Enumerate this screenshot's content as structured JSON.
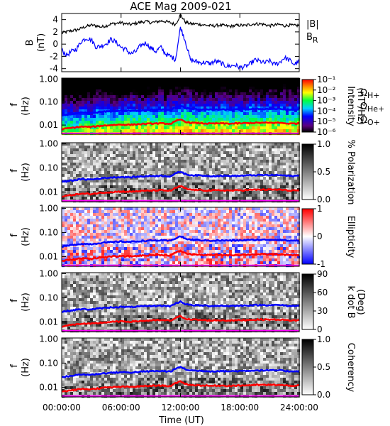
{
  "chart_data": {
    "title": "ACE Mag 2009-021",
    "type": "multi-panel spectrogram",
    "xlabel": "Time (UT)",
    "x_ticks": [
      "00:00:00",
      "06:00:00",
      "12:00:00",
      "18:00:00",
      "24:00:00"
    ],
    "x_range_hours": [
      0,
      24
    ],
    "field_panel": {
      "type": "line",
      "ylabel": "B",
      "yunit": "(nT)",
      "ylim": [
        -4.5,
        5
      ],
      "y_ticks": [
        "4",
        "2",
        "0",
        "-2",
        "-4"
      ],
      "legend": [
        "|B|",
        "B_R"
      ],
      "series": [
        {
          "name": "|B|",
          "color": "#000000",
          "x": [
            0,
            0.5,
            1,
            1.5,
            2,
            2.5,
            3,
            3.5,
            4,
            4.5,
            5,
            5.5,
            6,
            6.5,
            7,
            7.5,
            8,
            8.5,
            9,
            9.5,
            10,
            10.5,
            11,
            11.5,
            12,
            12.5,
            13,
            13.5,
            14,
            14.5,
            15,
            15.5,
            16,
            16.5,
            17,
            17.5,
            18,
            18.5,
            19,
            19.5,
            20,
            20.5,
            21,
            21.5,
            22,
            22.5,
            23,
            23.5,
            24
          ],
          "values": [
            1.8,
            2.0,
            2.2,
            2.3,
            2.6,
            2.9,
            3.1,
            3.0,
            2.8,
            3.0,
            3.3,
            3.4,
            3.5,
            3.3,
            3.2,
            3.4,
            3.6,
            3.7,
            3.5,
            3.6,
            3.8,
            3.7,
            3.5,
            3.2,
            4.8,
            3.6,
            3.3,
            3.3,
            3.2,
            3.1,
            3.0,
            3.0,
            3.1,
            3.0,
            2.9,
            3.0,
            3.1,
            3.0,
            3.2,
            3.3,
            3.3,
            3.2,
            3.0,
            3.1,
            3.2,
            3.0,
            3.1,
            3.0,
            3.1
          ]
        },
        {
          "name": "B_R",
          "color": "#0000ff",
          "x": [
            0,
            0.5,
            1,
            1.5,
            2,
            2.5,
            3,
            3.5,
            4,
            4.5,
            5,
            5.5,
            6,
            6.5,
            7,
            7.5,
            8,
            8.5,
            9,
            9.5,
            10,
            10.5,
            11,
            11.5,
            12,
            12.5,
            13,
            13.5,
            14,
            14.5,
            15,
            15.5,
            16,
            16.5,
            17,
            17.5,
            18,
            18.5,
            19,
            19.5,
            20,
            20.5,
            21,
            21.5,
            22,
            22.5,
            23,
            23.5,
            24
          ],
          "values": [
            -1.0,
            -1.8,
            -1.2,
            -0.8,
            0.5,
            1.0,
            0.7,
            -0.5,
            -0.3,
            0.1,
            0.8,
            0.3,
            -0.5,
            -0.9,
            -1.6,
            -1.2,
            -0.2,
            0.2,
            -0.6,
            -1.2,
            -0.5,
            -1.6,
            -2.0,
            -2.5,
            2.8,
            0.5,
            -2.6,
            -2.8,
            -3.0,
            -3.0,
            -3.2,
            -2.8,
            -3.0,
            -3.5,
            -3.6,
            -3.4,
            -3.8,
            -3.7,
            -3.3,
            -2.6,
            -2.8,
            -3.1,
            -2.7,
            -3.3,
            -3.0,
            -2.2,
            -2.6,
            -3.3,
            -2.8
          ]
        }
      ]
    },
    "spectrogram_panels": [
      {
        "ylabel": "f",
        "yunit": "(Hz)",
        "colormap": "rainbow",
        "colorbar_label": "Intensity",
        "colorbar_unit": "(nT²/Hz)",
        "colorbar_ticks": [
          "10⁻¹",
          "10⁻²",
          "10⁻³",
          "10⁻⁴",
          "10⁻⁵",
          "10⁻⁶"
        ]
      },
      {
        "ylabel": "f",
        "yunit": "(Hz)",
        "colormap": "gray",
        "colorbar_label": "% Polarization",
        "colorbar_ticks": [
          "1.0",
          "0.5",
          "0.0"
        ]
      },
      {
        "ylabel": "f",
        "yunit": "(Hz)",
        "colormap": "blue-white-red",
        "colorbar_label": "Ellipticity",
        "colorbar_ticks": [
          "1",
          "0",
          "-1"
        ]
      },
      {
        "ylabel": "f",
        "yunit": "(Hz)",
        "colormap": "gray",
        "colorbar_label": "k dot B",
        "colorbar_unit": "(Deg)",
        "colorbar_ticks": [
          "90",
          "60",
          "30",
          "0"
        ]
      },
      {
        "ylabel": "f",
        "yunit": "(Hz)",
        "colormap": "gray",
        "colorbar_label": "Coherency",
        "colorbar_ticks": [
          "1.0",
          "0.5",
          "0.0"
        ]
      }
    ],
    "frequency_axis": {
      "scale": "log",
      "ylim_hz": [
        0.004,
        1.1
      ],
      "y_ticks": [
        "1.00",
        "0.10",
        "0.01"
      ]
    },
    "gyrofrequency_lines": [
      {
        "name": "Ω_H+",
        "label_base": "Ω",
        "label_sub": "H+",
        "color": "#0000ff",
        "x": [
          0,
          1,
          2,
          3,
          4,
          5,
          6,
          7,
          8,
          9,
          10,
          11,
          12,
          12.5,
          13,
          14,
          15,
          16,
          17,
          18,
          19,
          20,
          21,
          22,
          23,
          24
        ],
        "values": [
          0.026,
          0.03,
          0.034,
          0.033,
          0.037,
          0.04,
          0.042,
          0.041,
          0.044,
          0.046,
          0.047,
          0.045,
          0.07,
          0.055,
          0.05,
          0.048,
          0.046,
          0.047,
          0.046,
          0.047,
          0.049,
          0.05,
          0.05,
          0.05,
          0.046,
          0.047
        ]
      },
      {
        "name": "Ω_He+",
        "label_base": "Ω",
        "label_sub": "He+",
        "color": "#ff0000",
        "x": [
          0,
          1,
          2,
          3,
          4,
          5,
          6,
          7,
          8,
          9,
          10,
          11,
          12,
          12.5,
          13,
          14,
          15,
          16,
          17,
          18,
          19,
          20,
          21,
          22,
          23,
          24
        ],
        "values": [
          0.0066,
          0.0075,
          0.0085,
          0.0083,
          0.0093,
          0.01,
          0.0105,
          0.0103,
          0.011,
          0.0115,
          0.0118,
          0.0113,
          0.0175,
          0.0138,
          0.0125,
          0.012,
          0.0115,
          0.0118,
          0.0115,
          0.0118,
          0.0122,
          0.0125,
          0.0125,
          0.0125,
          0.0115,
          0.0118
        ]
      },
      {
        "name": "Ω_O+",
        "label_base": "Ω",
        "label_sub": "O+",
        "color": "#ff00ff",
        "x": [
          0,
          1,
          2,
          3,
          4,
          5,
          6,
          7,
          8,
          9,
          10,
          11,
          12,
          12.5,
          13,
          14,
          15,
          16,
          17,
          18,
          19,
          20,
          21,
          22,
          23,
          24
        ],
        "values": [
          0.0017,
          0.0019,
          0.0021,
          0.0021,
          0.0023,
          0.0025,
          0.0026,
          0.0026,
          0.0028,
          0.0029,
          0.003,
          0.0028,
          0.0044,
          0.0035,
          0.0031,
          0.003,
          0.0029,
          0.003,
          0.0029,
          0.003,
          0.003,
          0.0031,
          0.0031,
          0.0031,
          0.0029,
          0.003
        ]
      }
    ]
  }
}
